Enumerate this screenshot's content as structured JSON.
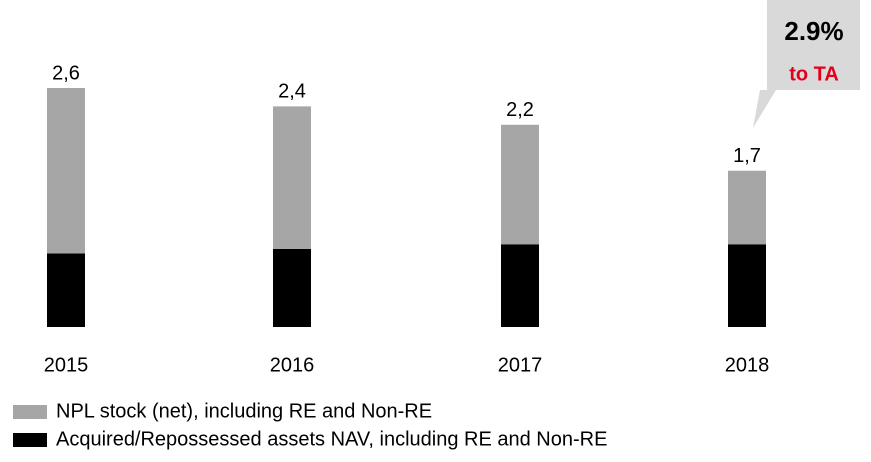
{
  "chart_data": {
    "type": "stacked_bar",
    "categories": [
      "2015",
      "2016",
      "2017",
      "2018"
    ],
    "series": [
      {
        "name": "Acquired/Repossessed assets NAV, including RE and Non-RE",
        "color": "#000000",
        "values": [
          0.8,
          0.85,
          0.9,
          0.9
        ]
      },
      {
        "name": "NPL stock (net), including RE and Non-RE",
        "color": "#a6a6a6",
        "values": [
          1.8,
          1.55,
          1.3,
          0.8
        ]
      }
    ],
    "totals": {
      "values": [
        2.6,
        2.4,
        2.2,
        1.7
      ],
      "value_labels": [
        "2,6",
        "2,4",
        "2,2",
        "1,7"
      ]
    },
    "annotation": {
      "text": "2.9%",
      "subtext": "to TA"
    }
  }
}
